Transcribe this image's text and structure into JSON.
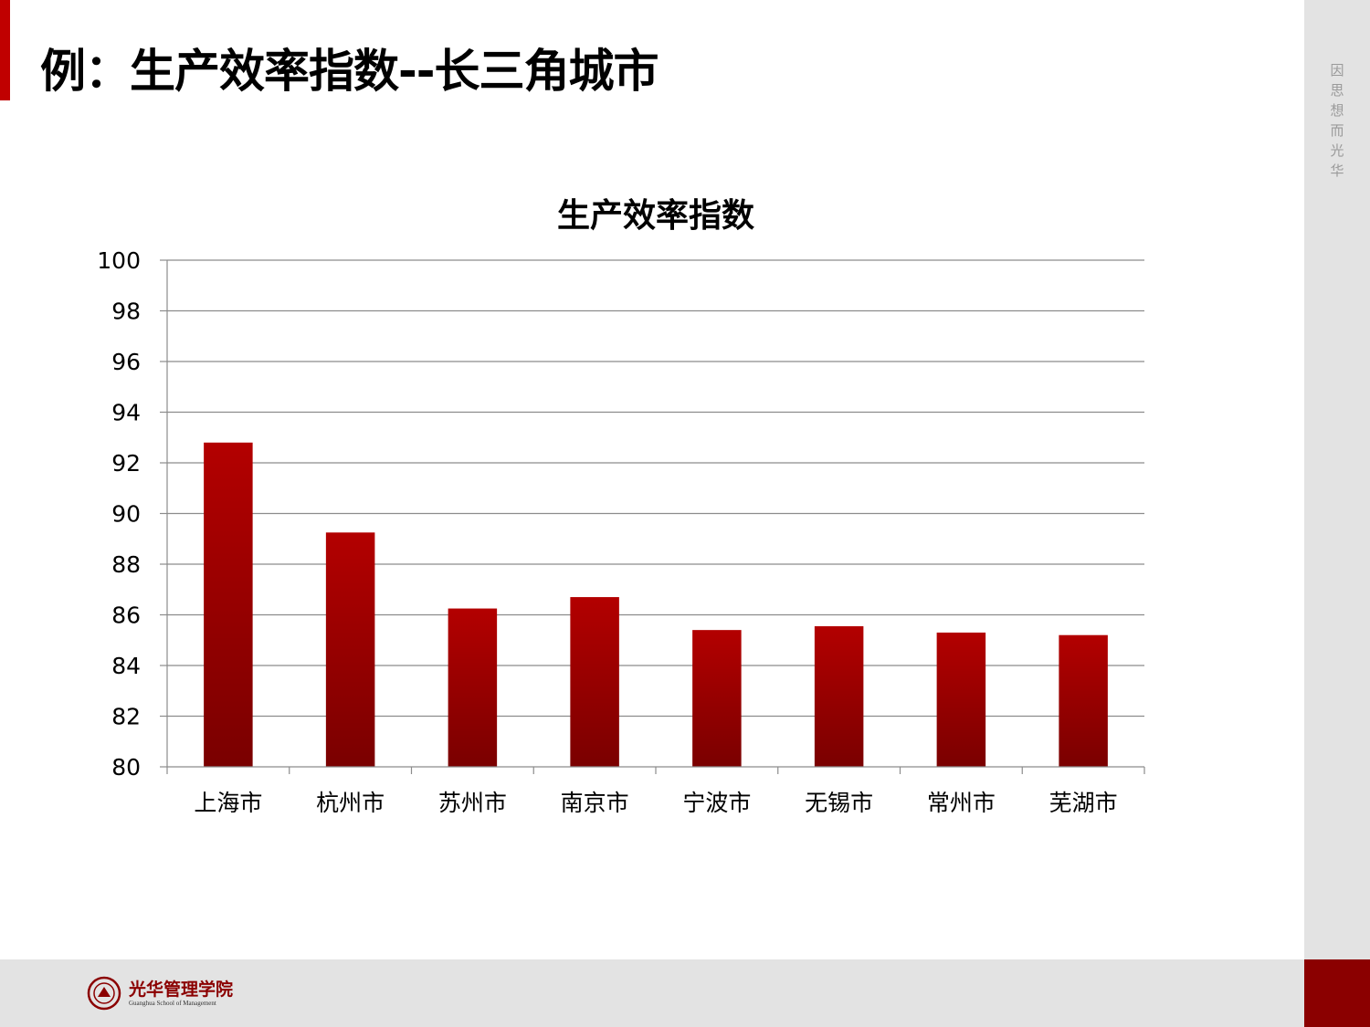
{
  "slide": {
    "title": "例：生产效率指数--长三角城市",
    "motto": "因思想 而光华",
    "logo_cn": "光华管理学院",
    "logo_en": "Guanghua School of Management"
  },
  "colors": {
    "accent": "#c00000",
    "bar_top": "#b30000",
    "bar_bottom": "#7a0000",
    "panel": "#e3e3e3"
  },
  "chart_data": {
    "type": "bar",
    "title": "生产效率指数",
    "categories": [
      "上海市",
      "杭州市",
      "苏州市",
      "南京市",
      "宁波市",
      "无锡市",
      "常州市",
      "芜湖市"
    ],
    "values": [
      92.8,
      89.25,
      86.25,
      86.7,
      85.4,
      85.55,
      85.3,
      85.2
    ],
    "ylim": [
      80,
      100
    ],
    "ytick_step": 2,
    "grid": true,
    "legend": "none"
  }
}
